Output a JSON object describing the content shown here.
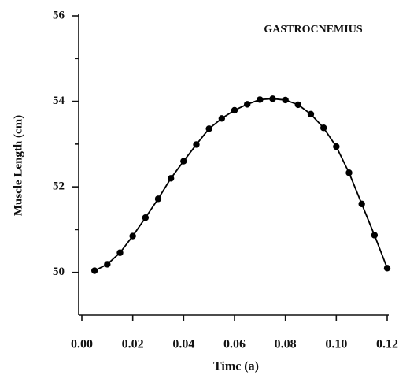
{
  "chart_data": {
    "type": "line",
    "annotation": "GASTROCNEMIUS",
    "xlabel": "Timc (a)",
    "ylabel": "Muscle Length (cm)",
    "x": [
      0.005,
      0.01,
      0.015,
      0.02,
      0.025,
      0.03,
      0.035,
      0.04,
      0.045,
      0.05,
      0.055,
      0.06,
      0.065,
      0.07,
      0.075,
      0.08,
      0.085,
      0.09,
      0.095,
      0.1,
      0.105,
      0.11,
      0.115,
      0.12
    ],
    "series": [
      {
        "color": "#000000",
        "values": [
          50.04,
          50.19,
          50.46,
          50.85,
          51.28,
          51.72,
          52.2,
          52.6,
          52.99,
          53.36,
          53.6,
          53.79,
          53.93,
          54.04,
          54.06,
          54.03,
          53.92,
          53.7,
          53.38,
          52.94,
          52.33,
          51.6,
          50.87,
          50.1
        ]
      }
    ],
    "xlim": [
      0,
      0.12
    ],
    "xticks": [
      {
        "value": 0,
        "label": "0.00"
      },
      {
        "value": 0.02,
        "label": "0.02"
      },
      {
        "value": 0.04,
        "label": "0.04"
      },
      {
        "value": 0.06,
        "label": "0.06"
      },
      {
        "value": 0.08,
        "label": "0.08"
      },
      {
        "value": 0.1,
        "label": "0.10"
      },
      {
        "value": 0.12,
        "label": "0.12"
      }
    ],
    "ylim": [
      49,
      56
    ],
    "yticks": [
      50,
      52,
      54,
      56
    ],
    "yminor_ticks": [
      51,
      53,
      55
    ]
  }
}
